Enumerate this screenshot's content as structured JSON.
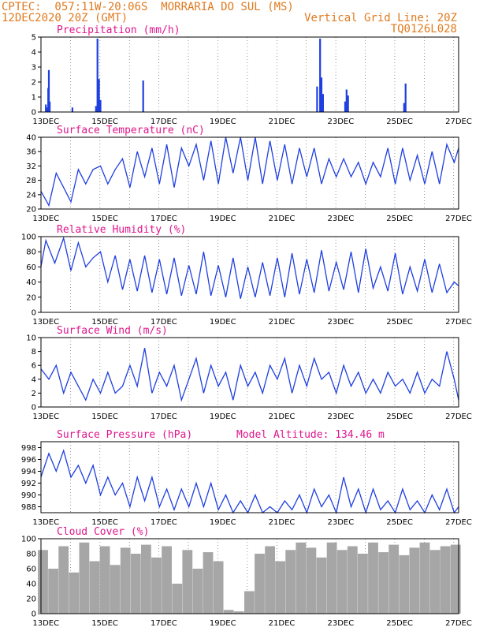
{
  "header": {
    "line1_left": "CPTEC:  057:11W-20:06S  MORRARIA DO SUL (MS)",
    "line2_left": "12DEC2020 20Z (GMT)",
    "line2_right": "Vertical Grid Line: 20Z",
    "line3_right": "TQ0126L028"
  },
  "colors": {
    "header": "#e07a1f",
    "title": "#e0168c",
    "series": "#1f3fe0",
    "cloud": "#a6a6a6"
  },
  "x_axis": {
    "start": "12DEC2020 20Z",
    "end": "27DEC2020 00Z",
    "labels": [
      "13DEC",
      "15DEC",
      "17DEC",
      "19DEC",
      "21DEC",
      "23DEC",
      "25DEC",
      "27DEC"
    ],
    "label_days": [
      13,
      15,
      17,
      19,
      21,
      23,
      25,
      27
    ]
  },
  "chart_data": [
    {
      "type": "bar",
      "title": "Precipitation (mm/h)",
      "ylim": [
        0,
        5
      ],
      "yticks": [
        0,
        1,
        2,
        3,
        4,
        5
      ],
      "x": [
        13.0,
        13.04,
        13.08,
        13.1,
        13.13,
        13.9,
        14.7,
        14.75,
        14.8,
        14.85,
        16.3,
        22.2,
        22.3,
        22.35,
        22.4,
        23.15,
        23.2,
        23.25,
        25.15,
        25.2
      ],
      "values": [
        0.5,
        0.3,
        1.6,
        2.8,
        0.7,
        0.3,
        0.4,
        4.9,
        2.2,
        0.8,
        2.1,
        1.7,
        4.9,
        2.3,
        1.2,
        0.7,
        1.5,
        1.1,
        0.6,
        1.9
      ]
    },
    {
      "type": "line",
      "title": "Surface Temperature (nC)",
      "ylim": [
        20,
        40
      ],
      "yticks": [
        20,
        24,
        28,
        32,
        36,
        40
      ],
      "x": [
        12.83,
        13.1,
        13.35,
        13.6,
        13.85,
        14.1,
        14.35,
        14.6,
        14.85,
        15.1,
        15.35,
        15.6,
        15.85,
        16.1,
        16.35,
        16.6,
        16.85,
        17.1,
        17.35,
        17.6,
        17.85,
        18.1,
        18.35,
        18.6,
        18.85,
        19.1,
        19.35,
        19.6,
        19.85,
        20.1,
        20.35,
        20.6,
        20.85,
        21.1,
        21.35,
        21.6,
        21.85,
        22.1,
        22.35,
        22.6,
        22.85,
        23.1,
        23.35,
        23.6,
        23.85,
        24.1,
        24.35,
        24.6,
        24.85,
        25.1,
        25.35,
        25.6,
        25.85,
        26.1,
        26.35,
        26.6,
        26.85,
        27.0
      ],
      "values": [
        25,
        21,
        30,
        26,
        22,
        31,
        27,
        31,
        32,
        27,
        31,
        34,
        26,
        36,
        29,
        37,
        27,
        38,
        26,
        37,
        32,
        38,
        28,
        39,
        27,
        40,
        30,
        40,
        28,
        40,
        27,
        39,
        28,
        38,
        27,
        37,
        29,
        37,
        27,
        34,
        29,
        34,
        29,
        33,
        27,
        33,
        29,
        37,
        27,
        37,
        28,
        35,
        27,
        36,
        27,
        38,
        33,
        37
      ]
    },
    {
      "type": "line",
      "title": "Relative Humidity (%)",
      "ylim": [
        0,
        100
      ],
      "yticks": [
        0,
        20,
        40,
        60,
        80,
        100
      ],
      "x": [
        12.83,
        13.0,
        13.3,
        13.6,
        13.85,
        14.1,
        14.35,
        14.6,
        14.85,
        15.1,
        15.35,
        15.6,
        15.85,
        16.1,
        16.35,
        16.6,
        16.85,
        17.1,
        17.35,
        17.6,
        17.85,
        18.1,
        18.35,
        18.6,
        18.85,
        19.1,
        19.35,
        19.6,
        19.85,
        20.1,
        20.35,
        20.6,
        20.85,
        21.1,
        21.35,
        21.6,
        21.85,
        22.1,
        22.35,
        22.6,
        22.85,
        23.1,
        23.35,
        23.6,
        23.85,
        24.1,
        24.35,
        24.6,
        24.85,
        25.1,
        25.35,
        25.6,
        25.85,
        26.1,
        26.35,
        26.6,
        26.85,
        27.0
      ],
      "values": [
        60,
        95,
        65,
        98,
        55,
        92,
        60,
        72,
        80,
        40,
        75,
        30,
        70,
        28,
        75,
        26,
        70,
        24,
        72,
        22,
        62,
        24,
        80,
        22,
        62,
        20,
        72,
        18,
        60,
        20,
        66,
        22,
        72,
        20,
        78,
        24,
        70,
        26,
        82,
        28,
        66,
        30,
        80,
        26,
        84,
        32,
        60,
        28,
        78,
        24,
        60,
        28,
        70,
        26,
        64,
        26,
        40,
        35
      ]
    },
    {
      "type": "line",
      "title": "Surface Wind (m/s)",
      "ylim": [
        0,
        10
      ],
      "yticks": [
        0,
        2,
        4,
        6,
        8,
        10
      ],
      "x": [
        12.83,
        13.1,
        13.35,
        13.6,
        13.85,
        14.1,
        14.35,
        14.6,
        14.85,
        15.1,
        15.35,
        15.6,
        15.85,
        16.1,
        16.35,
        16.6,
        16.85,
        17.1,
        17.35,
        17.6,
        17.85,
        18.1,
        18.35,
        18.6,
        18.85,
        19.1,
        19.35,
        19.6,
        19.85,
        20.1,
        20.35,
        20.6,
        20.85,
        21.1,
        21.35,
        21.6,
        21.85,
        22.1,
        22.35,
        22.6,
        22.85,
        23.1,
        23.35,
        23.6,
        23.85,
        24.1,
        24.35,
        24.6,
        24.85,
        25.1,
        25.35,
        25.6,
        25.85,
        26.1,
        26.35,
        26.6,
        26.85,
        27.0
      ],
      "values": [
        5.5,
        4,
        6,
        2,
        5,
        3,
        1,
        4,
        2,
        5,
        2,
        3,
        6,
        3,
        8.5,
        2,
        5,
        3,
        6,
        1,
        4,
        7,
        2,
        6,
        3,
        5,
        1,
        6,
        3,
        5,
        2,
        6,
        4,
        7,
        2,
        6,
        3,
        7,
        4,
        5,
        2,
        6,
        3,
        5,
        2,
        4,
        2,
        5,
        3,
        4,
        2,
        5,
        2,
        4,
        3,
        8,
        4,
        1
      ]
    },
    {
      "type": "line",
      "title": "Surface Pressure (hPa)",
      "annotation": "Model Altitude: 134.46 m",
      "ylim": [
        987,
        999
      ],
      "yticks": [
        988,
        990,
        992,
        994,
        996,
        998
      ],
      "x": [
        12.83,
        13.1,
        13.35,
        13.6,
        13.85,
        14.1,
        14.35,
        14.6,
        14.85,
        15.1,
        15.35,
        15.6,
        15.85,
        16.1,
        16.35,
        16.6,
        16.85,
        17.1,
        17.35,
        17.6,
        17.85,
        18.1,
        18.35,
        18.6,
        18.85,
        19.1,
        19.35,
        19.6,
        19.85,
        20.1,
        20.35,
        20.6,
        20.85,
        21.1,
        21.35,
        21.6,
        21.85,
        22.1,
        22.35,
        22.6,
        22.85,
        23.1,
        23.35,
        23.6,
        23.85,
        24.1,
        24.35,
        24.6,
        24.85,
        25.1,
        25.35,
        25.6,
        25.85,
        26.1,
        26.35,
        26.6,
        26.85,
        27.0
      ],
      "values": [
        993,
        997,
        994,
        997.5,
        993,
        995,
        992,
        995,
        990,
        993,
        990,
        992,
        988,
        993,
        989,
        993,
        988,
        991,
        987.5,
        991,
        988,
        992,
        988,
        992,
        987.5,
        990,
        987,
        989,
        987,
        990,
        987,
        988,
        987,
        989,
        987.5,
        990,
        987,
        991,
        988,
        990,
        987,
        993,
        988,
        991,
        987,
        991,
        987.5,
        989,
        987,
        991,
        987.5,
        989,
        987,
        990,
        987.5,
        991,
        987,
        988
      ]
    },
    {
      "type": "bar",
      "title": "Cloud Cover (%)",
      "ylim": [
        0,
        100
      ],
      "yticks": [
        0,
        20,
        40,
        60,
        80,
        100
      ],
      "x": [
        12.9,
        13.25,
        13.6,
        13.95,
        14.3,
        14.65,
        15.0,
        15.35,
        15.7,
        16.05,
        16.4,
        16.75,
        17.1,
        17.45,
        17.8,
        18.15,
        18.5,
        18.85,
        19.2,
        19.55,
        19.9,
        20.25,
        20.6,
        20.95,
        21.3,
        21.65,
        22.0,
        22.35,
        22.7,
        23.05,
        23.4,
        23.75,
        24.1,
        24.45,
        24.8,
        25.15,
        25.5,
        25.85,
        26.2,
        26.55,
        26.9
      ],
      "values": [
        85,
        60,
        90,
        55,
        95,
        70,
        90,
        65,
        88,
        80,
        92,
        75,
        90,
        40,
        85,
        60,
        82,
        70,
        5,
        3,
        30,
        80,
        90,
        70,
        85,
        95,
        88,
        75,
        95,
        85,
        90,
        80,
        95,
        82,
        92,
        78,
        88,
        95,
        85,
        90,
        92
      ]
    }
  ]
}
